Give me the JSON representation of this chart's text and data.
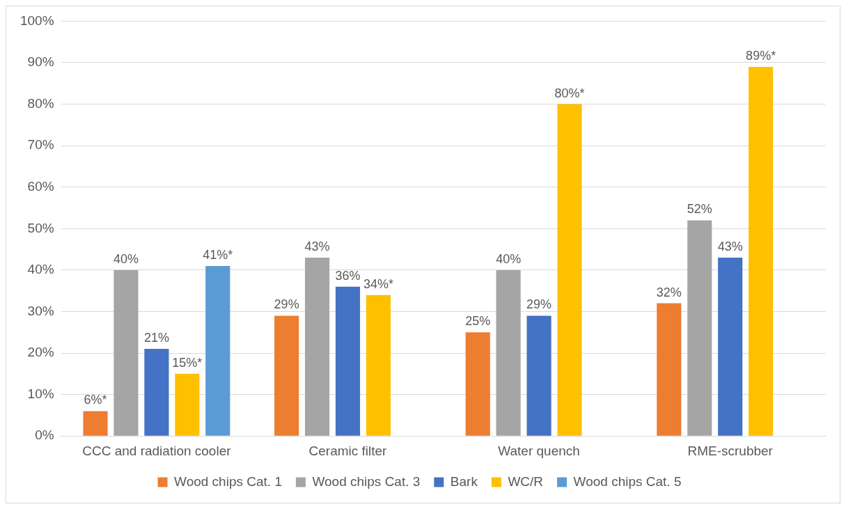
{
  "chart_data": {
    "type": "bar",
    "categories": [
      "CCC and radiation cooler",
      "Ceramic filter",
      "Water quench",
      "RME-scrubber"
    ],
    "series": [
      {
        "name": "Wood chips Cat. 1",
        "color": "#ed7d31",
        "values": [
          6,
          29,
          25,
          32
        ],
        "value_labels": [
          "6%*",
          "29%",
          "25%",
          "32%"
        ]
      },
      {
        "name": "Wood chips Cat. 3",
        "color": "#a5a5a5",
        "values": [
          40,
          43,
          40,
          52
        ],
        "value_labels": [
          "40%",
          "43%",
          "40%",
          "52%"
        ]
      },
      {
        "name": "Bark",
        "color": "#4472c4",
        "values": [
          21,
          36,
          29,
          43
        ],
        "value_labels": [
          "21%",
          "36%",
          "29%",
          "43%"
        ]
      },
      {
        "name": "WC/R",
        "color": "#ffc000",
        "values": [
          15,
          34,
          80,
          89
        ],
        "value_labels": [
          "15%*",
          "34%*",
          "80%*",
          "89%*"
        ]
      },
      {
        "name": "Wood chips Cat. 5",
        "color": "#5b9bd5",
        "values": [
          41,
          null,
          null,
          null
        ],
        "value_labels": [
          "41%*",
          null,
          null,
          null
        ]
      }
    ],
    "ylim": [
      0,
      100
    ],
    "yticks": [
      {
        "value": 0,
        "label": "0%"
      },
      {
        "value": 10,
        "label": "10%"
      },
      {
        "value": 20,
        "label": "20%"
      },
      {
        "value": 30,
        "label": "30%"
      },
      {
        "value": 40,
        "label": "40%"
      },
      {
        "value": 50,
        "label": "50%"
      },
      {
        "value": 60,
        "label": "60%"
      },
      {
        "value": 70,
        "label": "70%"
      },
      {
        "value": 80,
        "label": "80%"
      },
      {
        "value": 90,
        "label": "90%"
      },
      {
        "value": 100,
        "label": "100%"
      }
    ],
    "grid": "y",
    "legend": "bottom"
  }
}
